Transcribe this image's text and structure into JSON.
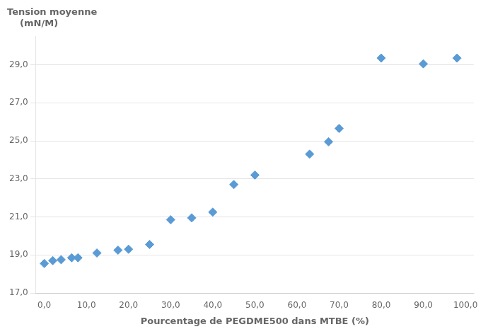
{
  "chart_data": {
    "type": "scatter",
    "title": [
      "Tension moyenne",
      "    (mN/M)"
    ],
    "xlabel": "Pourcentage de PEGDME500 dans MTBE (%)",
    "x": [
      0.0,
      2.0,
      4.0,
      6.5,
      8.0,
      12.5,
      17.5,
      20.0,
      25.0,
      30.0,
      35.0,
      40.0,
      45.0,
      50.0,
      63.0,
      67.5,
      70.0,
      80.0,
      90.0,
      98.0
    ],
    "values": [
      18.55,
      18.7,
      18.75,
      18.85,
      18.85,
      19.1,
      19.25,
      19.3,
      19.55,
      20.85,
      20.95,
      21.25,
      22.7,
      23.2,
      24.3,
      24.95,
      25.65,
      29.35,
      29.05,
      29.35
    ],
    "color": "#5B9BD5",
    "marker": "diamond",
    "xlim": [
      -2.0,
      102.0
    ],
    "ylim": [
      17.0,
      30.5
    ],
    "xticks": [
      {
        "value": 0,
        "label": "0,0"
      },
      {
        "value": 10,
        "label": "10,0"
      },
      {
        "value": 20,
        "label": "20,0"
      },
      {
        "value": 30,
        "label": "30,0"
      },
      {
        "value": 40,
        "label": "40,0"
      },
      {
        "value": 50,
        "label": "50,0"
      },
      {
        "value": 60,
        "label": "60,0"
      },
      {
        "value": 70,
        "label": "70,0"
      },
      {
        "value": 80,
        "label": "80,0"
      },
      {
        "value": 90,
        "label": "90,0"
      },
      {
        "value": 100,
        "label": "100,0"
      }
    ],
    "yticks": [
      {
        "value": 17,
        "label": "17,0"
      },
      {
        "value": 19,
        "label": "19,0"
      },
      {
        "value": 21,
        "label": "21,0"
      },
      {
        "value": 23,
        "label": "23,0"
      },
      {
        "value": 25,
        "label": "25,0"
      },
      {
        "value": 27,
        "label": "27,0"
      },
      {
        "value": 29,
        "label": "29,0"
      }
    ],
    "grid": "y"
  }
}
